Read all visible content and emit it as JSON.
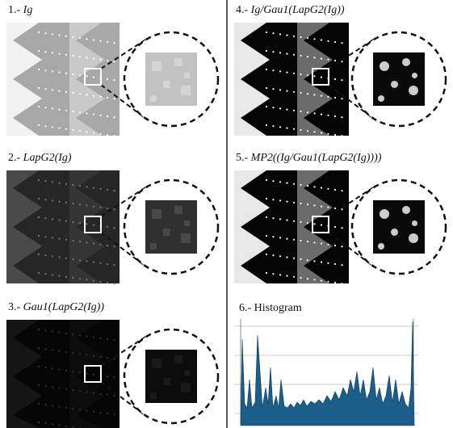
{
  "panels": [
    {
      "number": "1.-",
      "formula": "Ig"
    },
    {
      "number": "2.-",
      "formula": "LapG2(Ig)"
    },
    {
      "number": "3.-",
      "formula": "Gau1(LapG2(Ig))"
    },
    {
      "number": "4.-",
      "formula": "Ig/Gau1(LapG2(Ig))"
    },
    {
      "number": "5.-",
      "formula": "MP2((Ig/Gau1(LapG2(Ig))))"
    }
  ],
  "histogram": {
    "number": "6.-",
    "name": "Histogram"
  }
}
